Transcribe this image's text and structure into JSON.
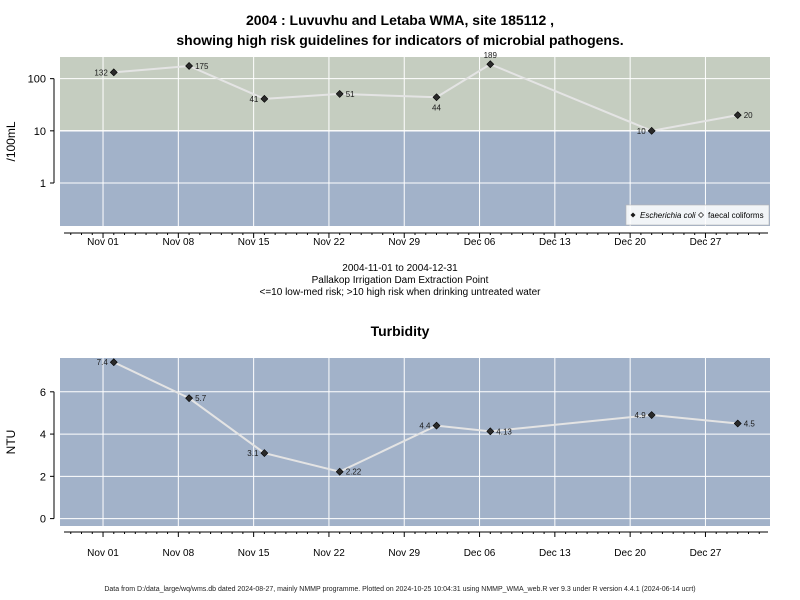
{
  "chart_data": [
    {
      "type": "line",
      "title_line1": "2004 : Luvuvhu and Letaba WMA, site 185112 ,",
      "title_line2": "showing high risk guidelines for indicators of microbial pathogens.",
      "ylabel": "/100mL",
      "y_scale": "log",
      "ylim": [
        0.15,
        260
      ],
      "yticks": [
        1,
        10,
        100
      ],
      "ytick_labels": [
        "1",
        "10",
        "100"
      ],
      "xlim": [
        "2004-10-28",
        "2005-01-02"
      ],
      "xticks": [
        "2004-11-01",
        "2004-11-08",
        "2004-11-15",
        "2004-11-22",
        "2004-11-29",
        "2004-12-06",
        "2004-12-13",
        "2004-12-20",
        "2004-12-27"
      ],
      "xtick_labels": [
        "Nov 01",
        "Nov 08",
        "Nov 15",
        "Nov 22",
        "Nov 29",
        "Dec 06",
        "Dec 13",
        "Dec 20",
        "Dec 27"
      ],
      "grid": true,
      "bands": [
        {
          "from": 0.15,
          "to": 10,
          "color": "#a2b2c9"
        },
        {
          "from": 10,
          "to": 260,
          "color": "#c5cdc0"
        }
      ],
      "guideline": 10,
      "series": [
        {
          "name": "Escherichia coli",
          "marker": "diamond-filled",
          "points": [
            {
              "x": "2004-11-02",
              "y": 132,
              "label": "132",
              "label_pos": "left"
            },
            {
              "x": "2004-11-09",
              "y": 175,
              "label": "175",
              "label_pos": "right"
            },
            {
              "x": "2004-11-16",
              "y": 41,
              "label": "41",
              "label_pos": "left"
            },
            {
              "x": "2004-11-23",
              "y": 51,
              "label": "51",
              "label_pos": "right"
            },
            {
              "x": "2004-12-02",
              "y": 44,
              "label": "44",
              "label_pos": "below"
            },
            {
              "x": "2004-12-07",
              "y": 189,
              "label": "189",
              "label_pos": "above"
            },
            {
              "x": "2004-12-22",
              "y": 10,
              "label": "10",
              "label_pos": "left"
            },
            {
              "x": "2004-12-30",
              "y": 20,
              "label": "20",
              "label_pos": "right"
            }
          ]
        }
      ],
      "legend": {
        "placement": "bottom-right",
        "items": [
          {
            "label": "Escherichia coli",
            "marker": "diamond-filled"
          },
          {
            "label": "faecal coliforms",
            "marker": "diamond-open"
          }
        ]
      }
    },
    {
      "type": "line",
      "title": "Turbidity",
      "ylabel": "NTU",
      "ylim": [
        -0.35,
        7.6
      ],
      "yticks": [
        0,
        2,
        4,
        6
      ],
      "ytick_labels": [
        "0",
        "2",
        "4",
        "6"
      ],
      "xlim": [
        "2004-10-28",
        "2005-01-02"
      ],
      "xticks": [
        "2004-11-01",
        "2004-11-08",
        "2004-11-15",
        "2004-11-22",
        "2004-11-29",
        "2004-12-06",
        "2004-12-13",
        "2004-12-20",
        "2004-12-27"
      ],
      "xtick_labels": [
        "Nov 01",
        "Nov 08",
        "Nov 15",
        "Nov 22",
        "Nov 29",
        "Dec 06",
        "Dec 13",
        "Dec 20",
        "Dec 27"
      ],
      "grid": true,
      "bands": [
        {
          "from": -0.35,
          "to": 7.6,
          "color": "#a2b2c9"
        }
      ],
      "series": [
        {
          "name": "",
          "marker": "diamond-filled",
          "points": [
            {
              "x": "2004-11-02",
              "y": 7.4,
              "label": "7.4",
              "label_pos": "left"
            },
            {
              "x": "2004-11-09",
              "y": 5.7,
              "label": "5.7",
              "label_pos": "right"
            },
            {
              "x": "2004-11-16",
              "y": 3.1,
              "label": "3.1",
              "label_pos": "left"
            },
            {
              "x": "2004-11-23",
              "y": 2.22,
              "label": "2.22",
              "label_pos": "right"
            },
            {
              "x": "2004-12-02",
              "y": 4.4,
              "label": "4.4",
              "label_pos": "left"
            },
            {
              "x": "2004-12-07",
              "y": 4.13,
              "label": "4.13",
              "label_pos": "right"
            },
            {
              "x": "2004-12-22",
              "y": 4.9,
              "label": "4.9",
              "label_pos": "left"
            },
            {
              "x": "2004-12-30",
              "y": 4.5,
              "label": "4.5",
              "label_pos": "right"
            }
          ]
        }
      ]
    }
  ],
  "caption": {
    "dates": "2004-11-01 to 2004-12-31",
    "site": "Pallakop Irrigation Dam Extraction Point",
    "risk": "<=10 low-med risk; >10 high risk when drinking untreated water"
  },
  "footer": "Data from D:/data_large/wq/wms.db dated 2024-08-27, mainly NMMP programme. Plotted on 2024-10-25 10:04:31 using NMMP_WMA_web.R ver 9.3 under R version 4.4.1 (2024-06-14 ucrt)"
}
